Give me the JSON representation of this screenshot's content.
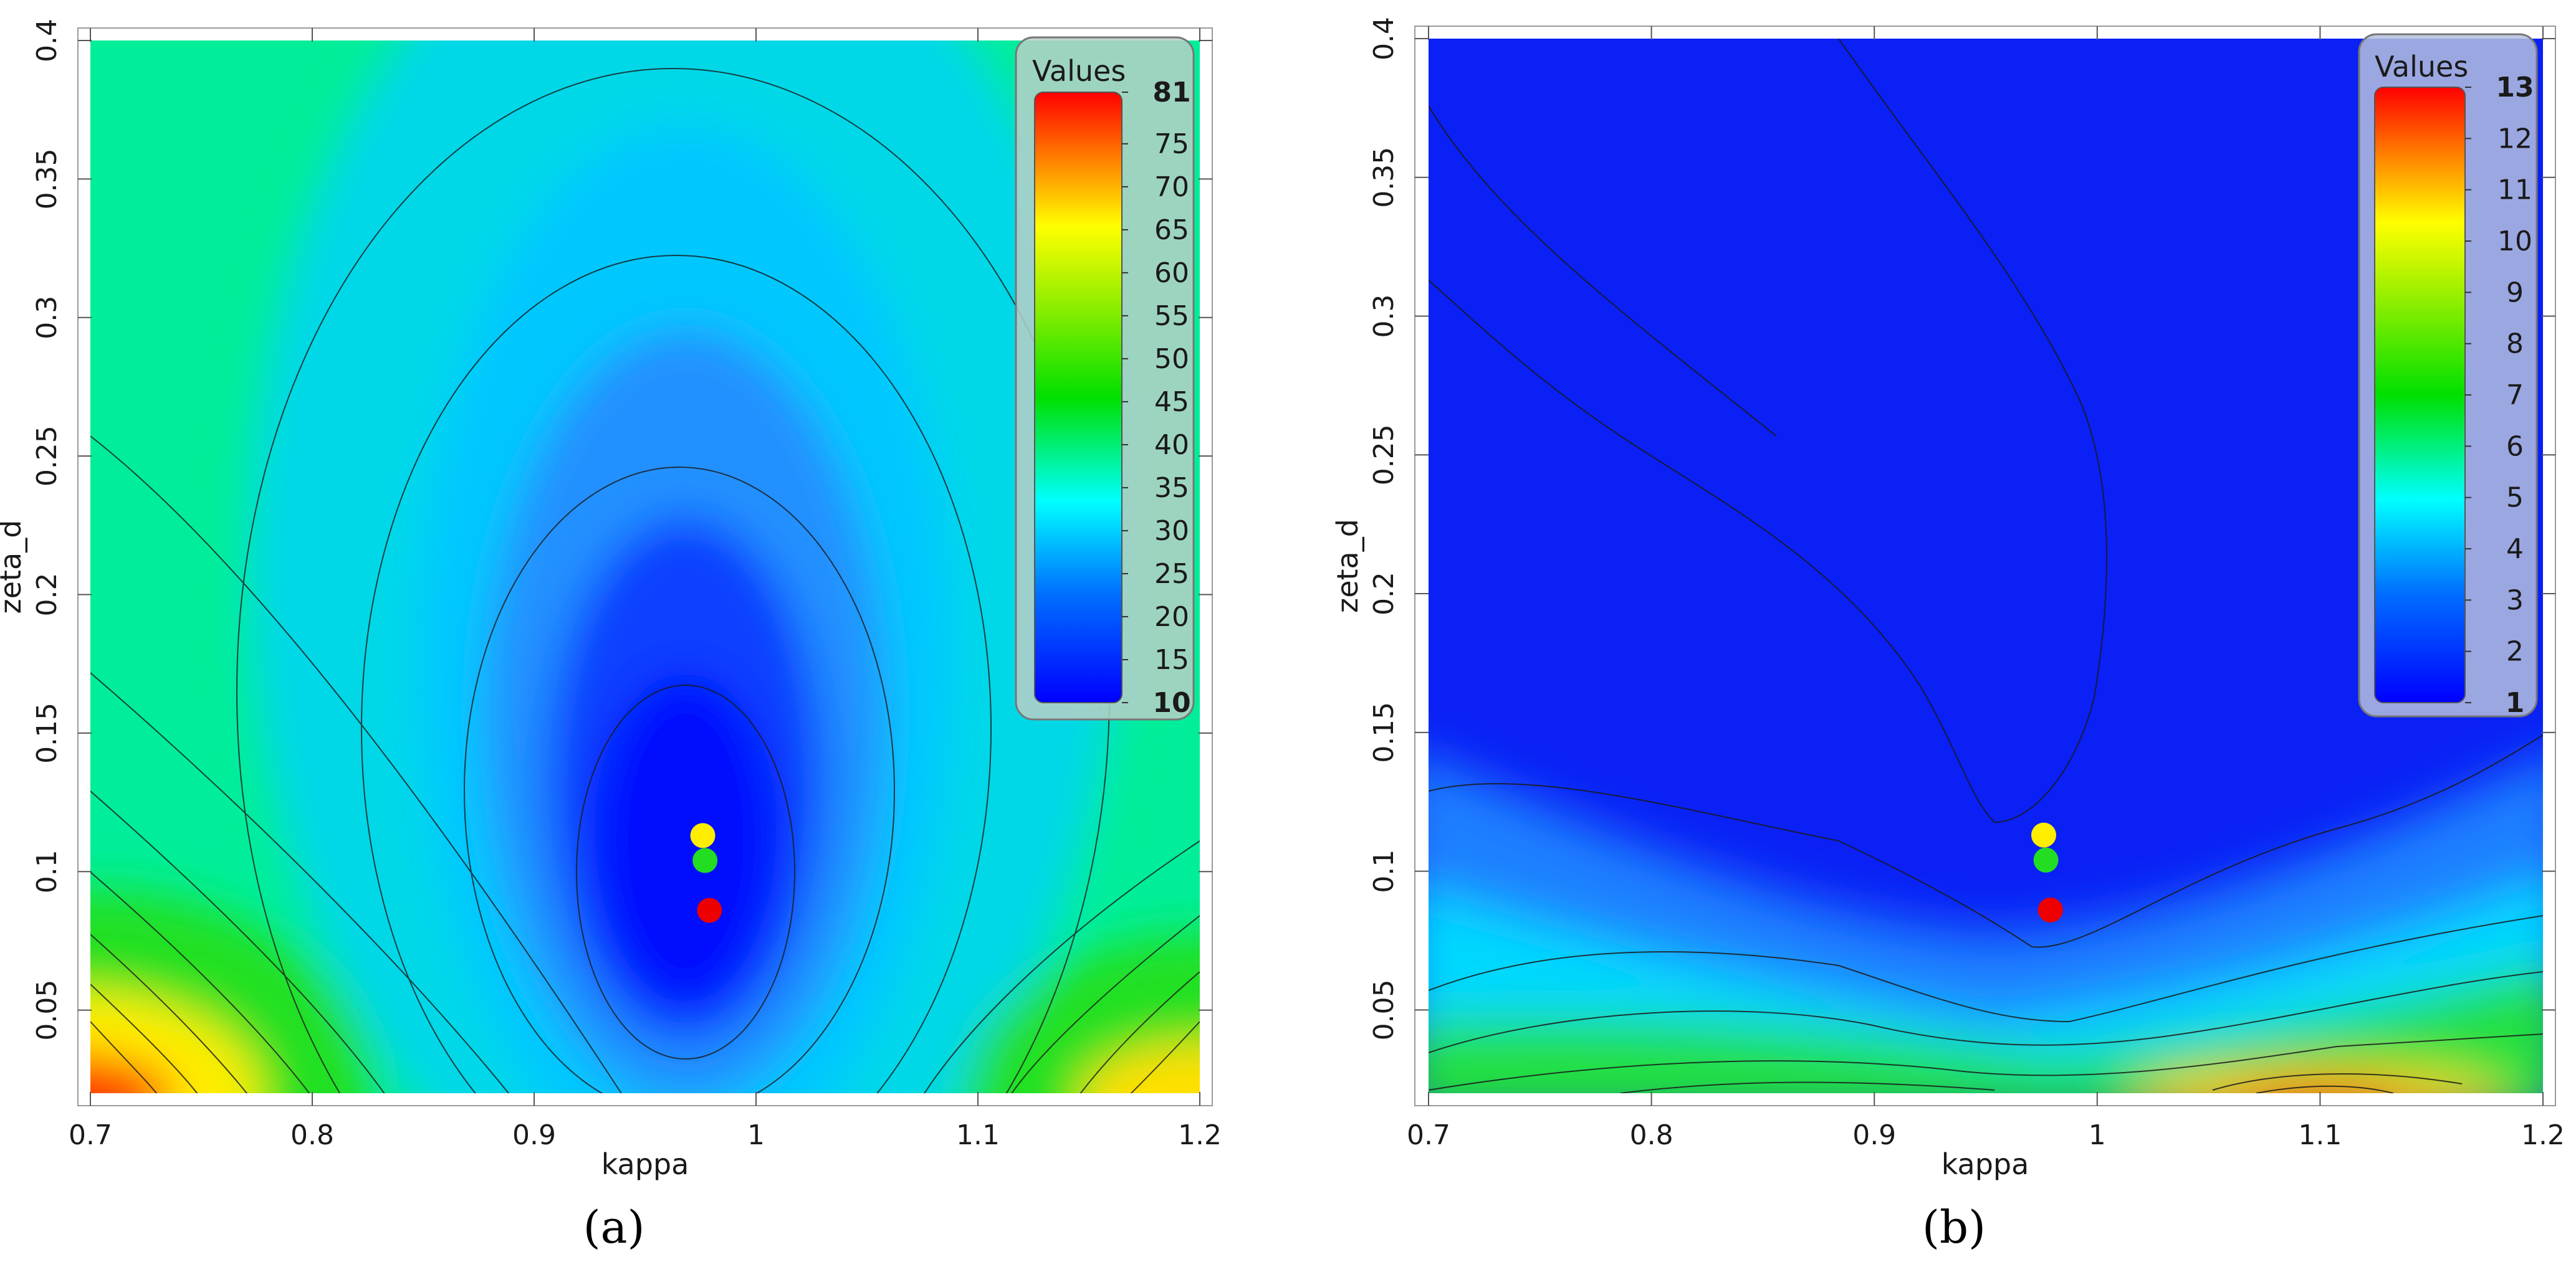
{
  "chart_data": [
    {
      "panel": "(a)",
      "type": "heatmap",
      "xlabel": "kappa",
      "ylabel": "zeta_d",
      "xlim": [
        0.7,
        1.2
      ],
      "ylim": [
        0.02,
        0.4
      ],
      "x_ticks": [
        "0.7",
        "0.8",
        "0.9",
        "1",
        "1.1",
        "1.2"
      ],
      "y_ticks": [
        "0.05",
        "0.1",
        "0.15",
        "0.2",
        "0.25",
        "0.3",
        "0.35",
        "0.4"
      ],
      "legend": {
        "title": "Values",
        "min": 10,
        "max": 81,
        "min_label": "10",
        "max_label": "81",
        "tick_labels": [
          "15",
          "20",
          "25",
          "30",
          "35",
          "40",
          "45",
          "50",
          "55",
          "60",
          "65",
          "70",
          "75"
        ],
        "placement": "top-right"
      },
      "surface": {
        "minimum_at": [
          0.98,
          0.085
        ],
        "minimum_value": 10,
        "maximum_value": 81,
        "max_location": "bottom-left corner"
      },
      "points": [
        {
          "color": "#ffee00",
          "x": 0.976,
          "y": 0.113
        },
        {
          "color": "#22dd22",
          "x": 0.977,
          "y": 0.104
        },
        {
          "color": "#ee0000",
          "x": 0.979,
          "y": 0.086
        }
      ]
    },
    {
      "panel": "(b)",
      "type": "heatmap",
      "xlabel": "kappa",
      "ylabel": "zeta_d",
      "xlim": [
        0.7,
        1.2
      ],
      "ylim": [
        0.02,
        0.4
      ],
      "x_ticks": [
        "0.7",
        "0.8",
        "0.9",
        "1",
        "1.1",
        "1.2"
      ],
      "y_ticks": [
        "0.05",
        "0.1",
        "0.15",
        "0.2",
        "0.25",
        "0.3",
        "0.35",
        "0.4"
      ],
      "legend": {
        "title": "Values",
        "min": 1,
        "max": 13,
        "min_label": "1",
        "max_label": "13",
        "tick_labels": [
          "2",
          "3",
          "4",
          "5",
          "6",
          "7",
          "8",
          "9",
          "10",
          "11",
          "12"
        ],
        "placement": "top-right"
      },
      "surface": {
        "minimum_region": "upper half",
        "minimum_value": 1,
        "maximum_value": 13,
        "max_location": "bottom edge near kappa 1.1"
      },
      "points": [
        {
          "color": "#ffee00",
          "x": 0.976,
          "y": 0.113
        },
        {
          "color": "#22dd22",
          "x": 0.977,
          "y": 0.104
        },
        {
          "color": "#ee0000",
          "x": 0.979,
          "y": 0.086
        }
      ]
    }
  ],
  "captions": [
    "(a)",
    "(b)"
  ]
}
